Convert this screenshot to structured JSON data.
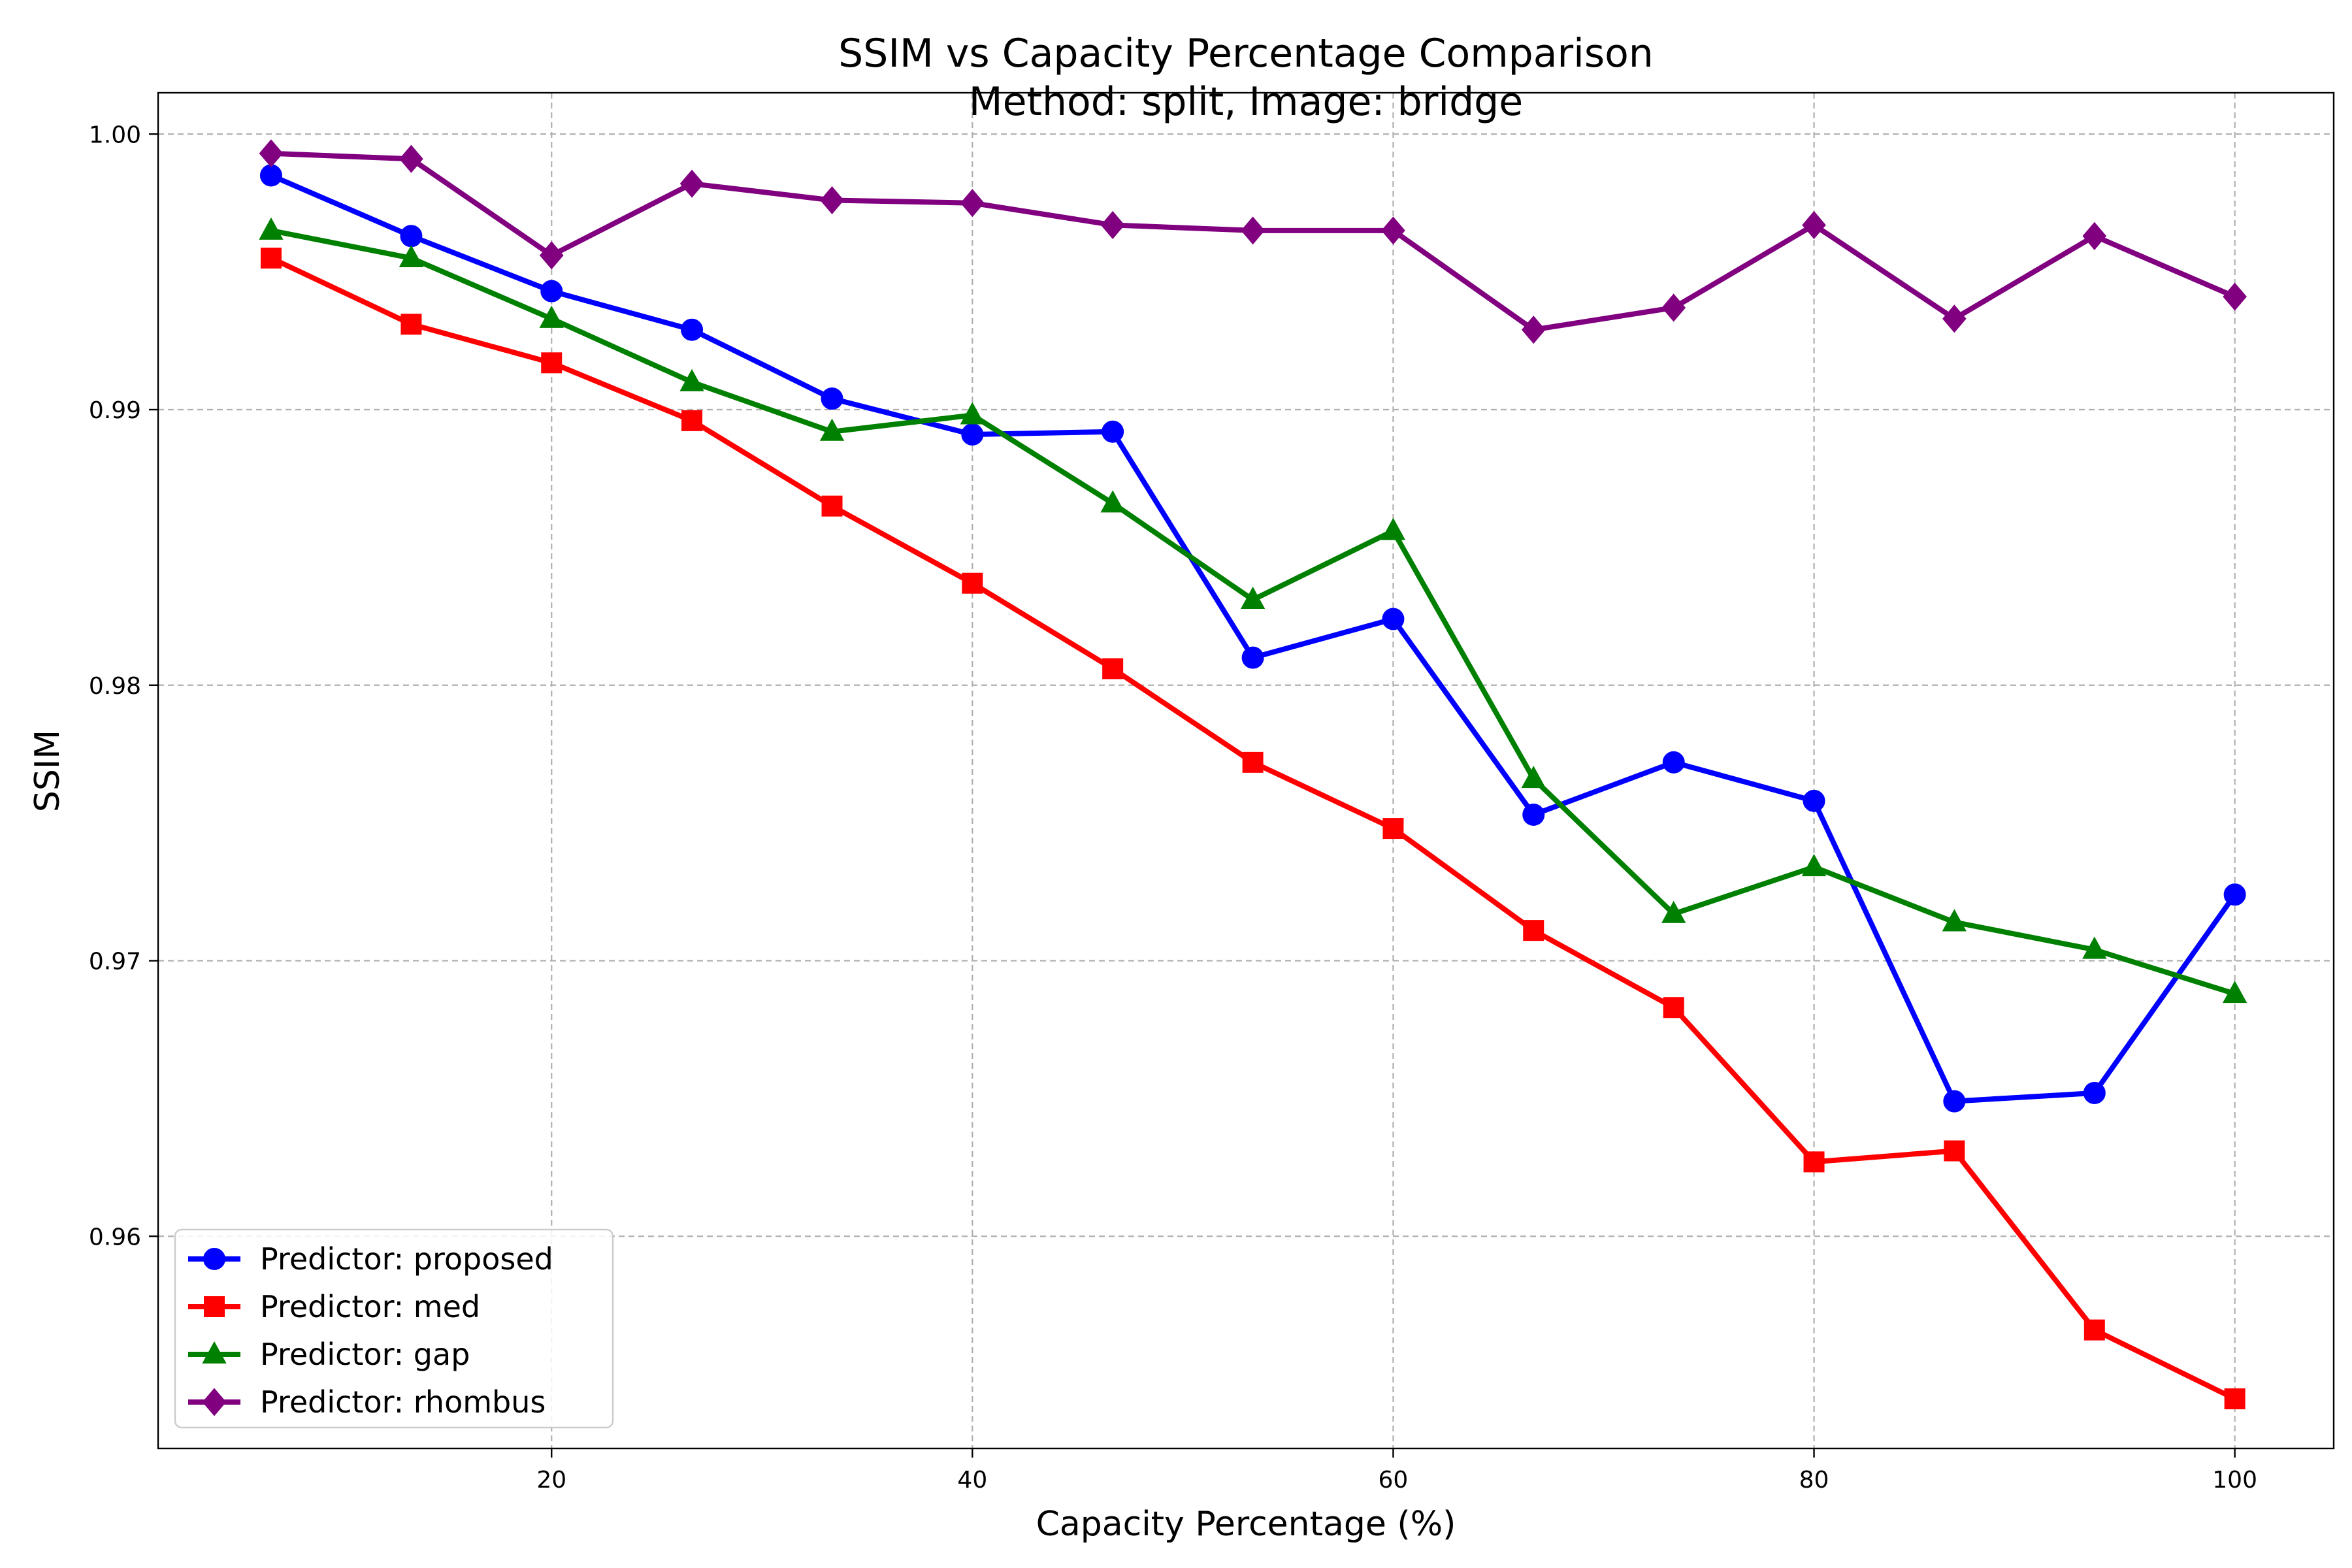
{
  "chart_data": {
    "type": "line",
    "title": "SSIM vs Capacity Percentage Comparison",
    "subtitle": "Method: split, Image: bridge",
    "xlabel": "Capacity Percentage (%)",
    "ylabel": "SSIM",
    "xlim": [
      1.3,
      104.7
    ],
    "ylim": [
      0.9523,
      1.0015
    ],
    "xticks": [
      20,
      40,
      60,
      80,
      100
    ],
    "xtick_labels": [
      "20",
      "40",
      "60",
      "80",
      "100"
    ],
    "yticks": [
      0.96,
      0.97,
      0.98,
      0.99,
      1.0
    ],
    "ytick_labels": [
      "0.96",
      "0.97",
      "0.98",
      "0.99",
      "1.00"
    ],
    "grid": true,
    "legend_position": "lower-left",
    "x": [
      6.67,
      13.33,
      20,
      26.67,
      33.33,
      40,
      46.67,
      53.33,
      60,
      66.67,
      73.33,
      80,
      86.67,
      93.33,
      100
    ],
    "series": [
      {
        "name": "Predictor: proposed",
        "color": "#0000ff",
        "marker": "circle",
        "values": [
          0.9985,
          0.9963,
          0.9943,
          0.9929,
          0.9904,
          0.9891,
          0.9892,
          0.981,
          0.9824,
          0.9753,
          0.9772,
          0.9758,
          0.9649,
          0.9652,
          0.9724
        ]
      },
      {
        "name": "Predictor: med",
        "color": "#ff0000",
        "marker": "square",
        "values": [
          0.9955,
          0.9931,
          0.9917,
          0.9896,
          0.9865,
          0.9837,
          0.9806,
          0.9772,
          0.9748,
          0.9711,
          0.9683,
          0.9627,
          0.9631,
          0.9566,
          0.9541
        ]
      },
      {
        "name": "Predictor: gap",
        "color": "#008000",
        "marker": "triangle",
        "values": [
          0.9965,
          0.9955,
          0.9933,
          0.991,
          0.9892,
          0.9898,
          0.9866,
          0.9831,
          0.9856,
          0.9766,
          0.9717,
          0.9734,
          0.9714,
          0.9704,
          0.9688
        ]
      },
      {
        "name": "Predictor: rhombus",
        "color": "#800080",
        "marker": "diamond",
        "values": [
          0.9993,
          0.9991,
          0.9956,
          0.9982,
          0.9976,
          0.9975,
          0.9967,
          0.9965,
          0.9965,
          0.9929,
          0.9937,
          0.9967,
          0.9933,
          0.9963,
          0.9941
        ]
      }
    ]
  }
}
